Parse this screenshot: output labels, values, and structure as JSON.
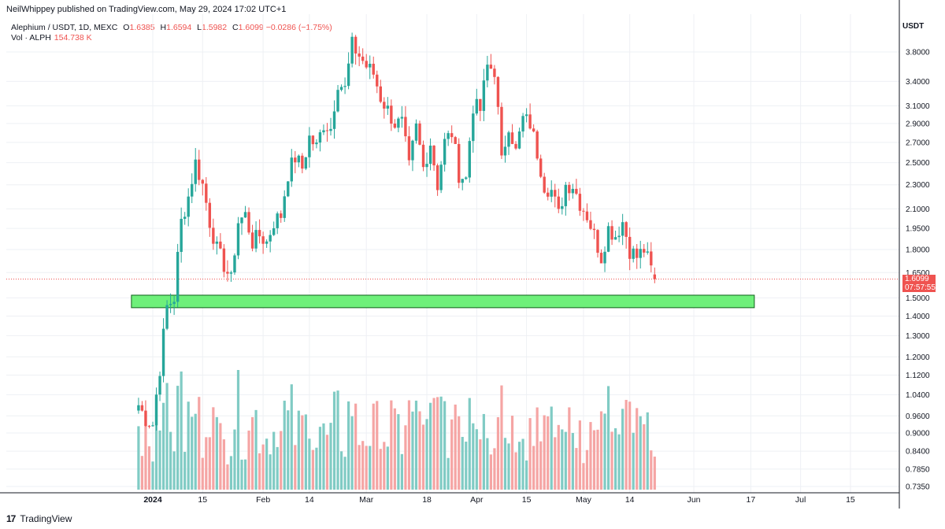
{
  "header": {
    "published": "NeilWhippey published on TradingView.com, May 29, 2024 17:02 UTC+1"
  },
  "legend": {
    "symbol": "Alephium / USDT, 1D, MEXC",
    "o_label": "O",
    "o": "1.6385",
    "h_label": "H",
    "h": "1.6594",
    "l_label": "L",
    "l": "1.5982",
    "c_label": "C",
    "c": "1.6099",
    "change": "−0.0286 (−1.75%)",
    "vol_label": "Vol · ALPH",
    "vol": "154.738 K"
  },
  "price_tag": {
    "price": "1.6099",
    "countdown": "07:57:55"
  },
  "currency": "USDT",
  "footer": {
    "brand": "TradingView"
  },
  "colors": {
    "up": "#26a69a",
    "down": "#ef5350",
    "vol_up": "#80cbc4",
    "vol_down": "#f5a5a4",
    "zone_fill": "#6ef07a",
    "zone_stroke": "#0f5f1a"
  },
  "chart_data": {
    "type": "candlestick",
    "title": "",
    "xlabel": "",
    "ylabel": "",
    "y_scale": "log",
    "ylim": [
      0.72,
      4.1
    ],
    "grid": true,
    "y_ticks": [
      3.8,
      3.4,
      3.1,
      2.9,
      2.7,
      2.5,
      2.3,
      2.1,
      1.95,
      1.8,
      1.65,
      1.5,
      1.4,
      1.3,
      1.2,
      1.12,
      1.04,
      0.96,
      0.9,
      0.84,
      0.785,
      0.735
    ],
    "y_tick_labels": [
      "3.8000",
      "3.4000",
      "3.1000",
      "2.9000",
      "2.7000",
      "2.5000",
      "2.3000",
      "2.1000",
      "1.9500",
      "1.8000",
      "1.6500",
      "1.5000",
      "1.4000",
      "1.3000",
      "1.2000",
      "1.1200",
      "1.0400",
      "0.9600",
      "0.9000",
      "0.8400",
      "0.7850",
      "0.7350"
    ],
    "x_ticks": [
      {
        "label": "2024",
        "day": 0,
        "bold": true
      },
      {
        "label": "15",
        "day": 14
      },
      {
        "label": "Feb",
        "day": 31
      },
      {
        "label": "14",
        "day": 44
      },
      {
        "label": "Mar",
        "day": 60
      },
      {
        "label": "18",
        "day": 77
      },
      {
        "label": "Apr",
        "day": 91
      },
      {
        "label": "15",
        "day": 105
      },
      {
        "label": "May",
        "day": 121
      },
      {
        "label": "14",
        "day": 134
      },
      {
        "label": "Jun",
        "day": 152
      },
      {
        "label": "17",
        "day": 168
      },
      {
        "label": "Jul",
        "day": 182
      },
      {
        "label": "15",
        "day": 196
      }
    ],
    "zone": {
      "start_day": -6,
      "end_day": 169,
      "low": 1.445,
      "high": 1.515
    },
    "last_price": 1.6099,
    "anchors": [
      [
        -4,
        1.0
      ],
      [
        -2,
        0.95
      ],
      [
        0,
        0.93
      ],
      [
        2,
        1.15
      ],
      [
        4,
        1.45
      ],
      [
        6,
        1.5
      ],
      [
        8,
        2.0
      ],
      [
        10,
        2.2
      ],
      [
        12,
        2.5
      ],
      [
        14,
        2.3
      ],
      [
        16,
        2.0
      ],
      [
        18,
        1.8
      ],
      [
        20,
        1.7
      ],
      [
        22,
        1.6
      ],
      [
        24,
        2.0
      ],
      [
        26,
        2.05
      ],
      [
        28,
        1.85
      ],
      [
        30,
        1.9
      ],
      [
        32,
        1.85
      ],
      [
        34,
        2.0
      ],
      [
        36,
        2.05
      ],
      [
        38,
        2.4
      ],
      [
        40,
        2.55
      ],
      [
        42,
        2.45
      ],
      [
        44,
        2.75
      ],
      [
        46,
        2.65
      ],
      [
        48,
        2.9
      ],
      [
        50,
        2.85
      ],
      [
        52,
        3.4
      ],
      [
        54,
        3.3
      ],
      [
        56,
        3.9
      ],
      [
        58,
        3.75
      ],
      [
        60,
        3.6
      ],
      [
        62,
        3.5
      ],
      [
        64,
        3.2
      ],
      [
        66,
        3.05
      ],
      [
        68,
        2.9
      ],
      [
        70,
        2.9
      ],
      [
        72,
        2.45
      ],
      [
        74,
        2.85
      ],
      [
        76,
        2.45
      ],
      [
        78,
        2.7
      ],
      [
        80,
        2.3
      ],
      [
        82,
        2.7
      ],
      [
        84,
        2.8
      ],
      [
        86,
        2.4
      ],
      [
        88,
        2.35
      ],
      [
        90,
        3.1
      ],
      [
        92,
        3.05
      ],
      [
        94,
        3.6
      ],
      [
        96,
        3.55
      ],
      [
        98,
        2.5
      ],
      [
        100,
        2.9
      ],
      [
        102,
        2.6
      ],
      [
        104,
        2.95
      ],
      [
        106,
        2.9
      ],
      [
        108,
        2.6
      ],
      [
        110,
        2.3
      ],
      [
        112,
        2.25
      ],
      [
        114,
        2.05
      ],
      [
        116,
        2.3
      ],
      [
        118,
        2.3
      ],
      [
        120,
        2.15
      ],
      [
        122,
        2.05
      ],
      [
        124,
        1.9
      ],
      [
        126,
        1.75
      ],
      [
        128,
        1.95
      ],
      [
        130,
        1.9
      ],
      [
        132,
        2.0
      ],
      [
        134,
        1.8
      ],
      [
        136,
        1.75
      ],
      [
        138,
        1.8
      ],
      [
        140,
        1.67
      ],
      [
        141,
        1.61
      ]
    ],
    "volume_scale": {
      "min": 0,
      "max": 1
    },
    "volume": []
  }
}
